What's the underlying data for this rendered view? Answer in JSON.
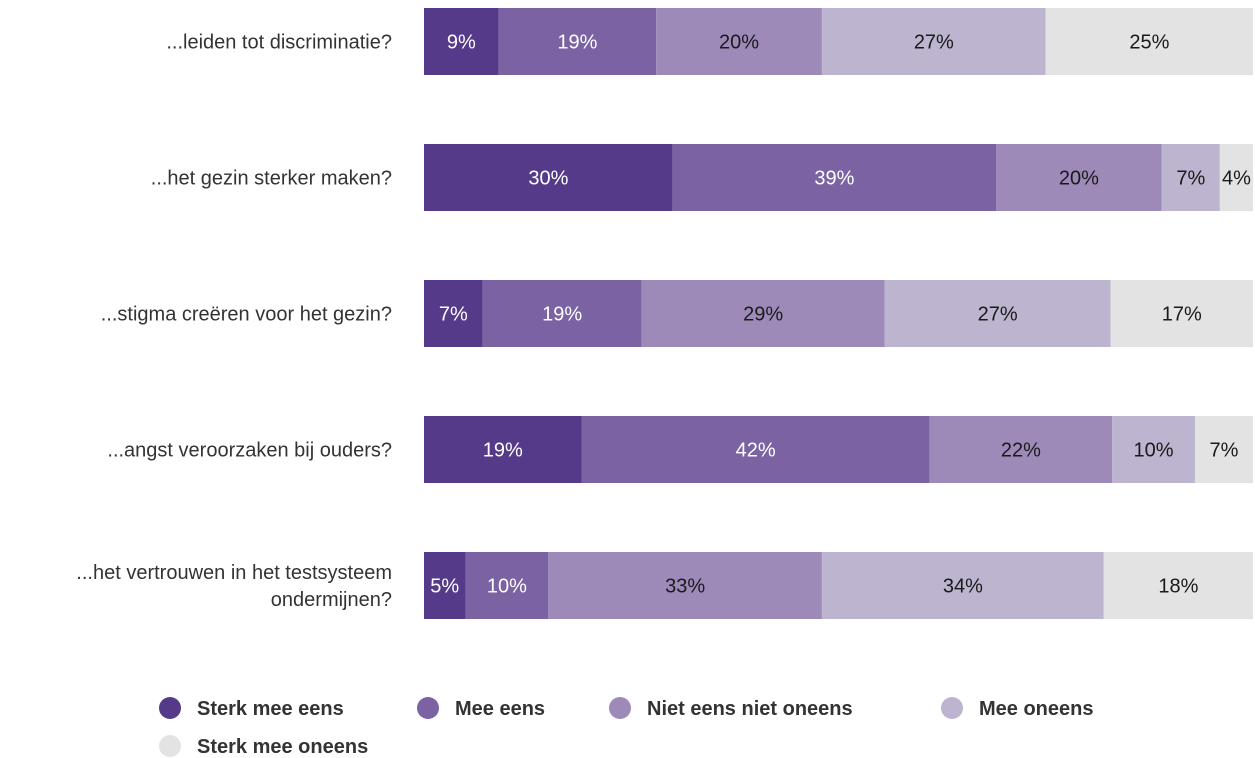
{
  "chart_data": {
    "type": "bar",
    "orientation": "horizontal",
    "stacked": true,
    "normalized": true,
    "categories": [
      [
        "...leiden tot discriminatie?"
      ],
      [
        "...het gezin sterker maken?"
      ],
      [
        "...stigma creëren voor het gezin?"
      ],
      [
        "...angst veroorzaken bij ouders?"
      ],
      [
        "...het vertrouwen in het testsysteem",
        "ondermijnen?"
      ]
    ],
    "series": [
      {
        "name": "Sterk mee eens",
        "color": "#553a8a",
        "label_color": "#ffffff",
        "values": [
          9,
          30,
          7,
          19,
          5
        ]
      },
      {
        "name": "Mee eens",
        "color": "#7a62a3",
        "label_color": "#ffffff",
        "values": [
          19,
          39,
          19,
          42,
          10
        ]
      },
      {
        "name": "Niet eens niet oneens",
        "color": "#9d8ab9",
        "label_color": "#1a1a1a",
        "values": [
          20,
          20,
          29,
          22,
          33
        ]
      },
      {
        "name": "Mee oneens",
        "color": "#bdb4cf",
        "label_color": "#1a1a1a",
        "values": [
          27,
          7,
          27,
          10,
          34
        ]
      },
      {
        "name": "Sterk mee oneens",
        "color": "#e3e3e3",
        "label_color": "#1a1a1a",
        "values": [
          25,
          4,
          17,
          7,
          18
        ]
      }
    ],
    "value_suffix": "%",
    "grid": false,
    "legend_position": "bottom"
  }
}
